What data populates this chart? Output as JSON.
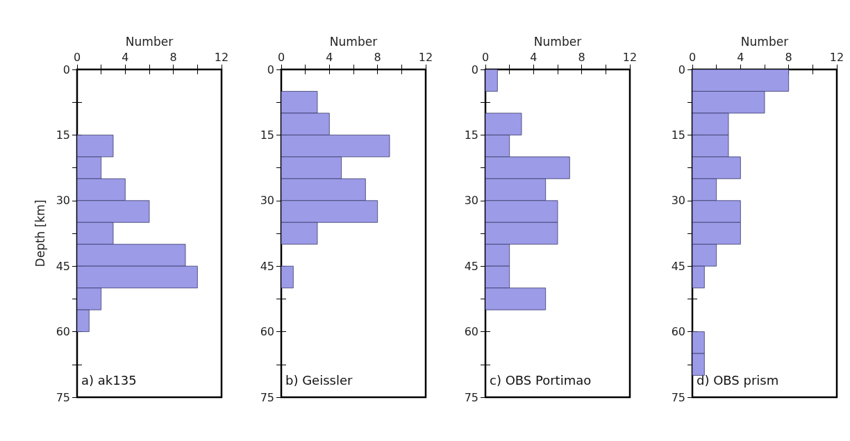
{
  "chart_data": [
    {
      "type": "histogram",
      "orientation": "horizontal",
      "xlabel": "Number",
      "ylabel": "Depth [km]",
      "annotations": [
        "a) ak135"
      ],
      "color": "#9b9be8",
      "bins": [
        0,
        5,
        10,
        15,
        20,
        25,
        30,
        35,
        40,
        45,
        50,
        55,
        60,
        65,
        70,
        75
      ],
      "values": [
        0,
        0,
        0,
        3,
        2,
        4,
        6,
        3,
        9,
        10,
        2,
        1,
        0,
        0,
        0
      ],
      "xlim": [
        0,
        12
      ],
      "xticks": [
        0,
        {
          "value": 2,
          "label": null
        },
        4,
        {
          "value": 6,
          "label": null
        },
        8,
        {
          "value": 10,
          "label": null
        },
        12
      ],
      "ylim": [
        75,
        0
      ],
      "yticks": [
        0,
        {
          "value": 7.5,
          "label": null
        },
        15,
        {
          "value": 22.5,
          "label": null
        },
        30,
        {
          "value": 37.5,
          "label": null
        },
        45,
        {
          "value": 52.5,
          "label": null
        },
        60,
        {
          "value": 67.5,
          "label": null
        },
        75
      ],
      "grid": false
    },
    {
      "type": "histogram",
      "orientation": "horizontal",
      "xlabel": "Number",
      "annotations": [
        "b) Geissler"
      ],
      "color": "#9b9be8",
      "bins": [
        0,
        5,
        10,
        15,
        20,
        25,
        30,
        35,
        40,
        45,
        50,
        55,
        60,
        65,
        70,
        75
      ],
      "values": [
        0,
        3,
        4,
        9,
        5,
        7,
        8,
        3,
        0,
        1,
        0,
        0,
        0,
        0,
        0
      ],
      "xlim": [
        0,
        12
      ],
      "xticks": [
        0,
        {
          "value": 2,
          "label": null
        },
        4,
        {
          "value": 6,
          "label": null
        },
        8,
        {
          "value": 10,
          "label": null
        },
        12
      ],
      "ylim": [
        75,
        0
      ],
      "yticks": [
        0,
        {
          "value": 7.5,
          "label": null
        },
        15,
        {
          "value": 22.5,
          "label": null
        },
        30,
        {
          "value": 37.5,
          "label": null
        },
        45,
        {
          "value": 52.5,
          "label": null
        },
        60,
        {
          "value": 67.5,
          "label": null
        },
        75
      ],
      "grid": false
    },
    {
      "type": "histogram",
      "orientation": "horizontal",
      "xlabel": "Number",
      "annotations": [
        "c) OBS Portimao"
      ],
      "color": "#9b9be8",
      "bins": [
        0,
        5,
        10,
        15,
        20,
        25,
        30,
        35,
        40,
        45,
        50,
        55,
        60,
        65,
        70,
        75
      ],
      "values": [
        1,
        0,
        3,
        2,
        7,
        5,
        6,
        6,
        2,
        2,
        5,
        0,
        0,
        0,
        0
      ],
      "xlim": [
        0,
        12
      ],
      "xticks": [
        0,
        {
          "value": 2,
          "label": null
        },
        4,
        {
          "value": 6,
          "label": null
        },
        8,
        {
          "value": 10,
          "label": null
        },
        12
      ],
      "ylim": [
        75,
        0
      ],
      "yticks": [
        0,
        {
          "value": 7.5,
          "label": null
        },
        15,
        {
          "value": 22.5,
          "label": null
        },
        30,
        {
          "value": 37.5,
          "label": null
        },
        45,
        {
          "value": 52.5,
          "label": null
        },
        60,
        {
          "value": 67.5,
          "label": null
        },
        75
      ],
      "grid": false
    },
    {
      "type": "histogram",
      "orientation": "horizontal",
      "xlabel": "Number",
      "annotations": [
        "d) OBS prism"
      ],
      "color": "#9b9be8",
      "bins": [
        0,
        5,
        10,
        15,
        20,
        25,
        30,
        35,
        40,
        45,
        50,
        55,
        60,
        65,
        70,
        75
      ],
      "values": [
        8,
        6,
        3,
        3,
        4,
        2,
        4,
        4,
        2,
        1,
        0,
        0,
        1,
        1,
        0
      ],
      "xlim": [
        0,
        12
      ],
      "xticks": [
        0,
        {
          "value": 2,
          "label": null
        },
        4,
        {
          "value": 6,
          "label": null
        },
        8,
        {
          "value": 10,
          "label": null
        },
        12
      ],
      "ylim": [
        75,
        0
      ],
      "yticks": [
        0,
        {
          "value": 7.5,
          "label": null
        },
        15,
        {
          "value": 22.5,
          "label": null
        },
        30,
        {
          "value": 37.5,
          "label": null
        },
        45,
        {
          "value": 52.5,
          "label": null
        },
        60,
        {
          "value": 67.5,
          "label": null
        },
        75
      ],
      "grid": false
    }
  ]
}
